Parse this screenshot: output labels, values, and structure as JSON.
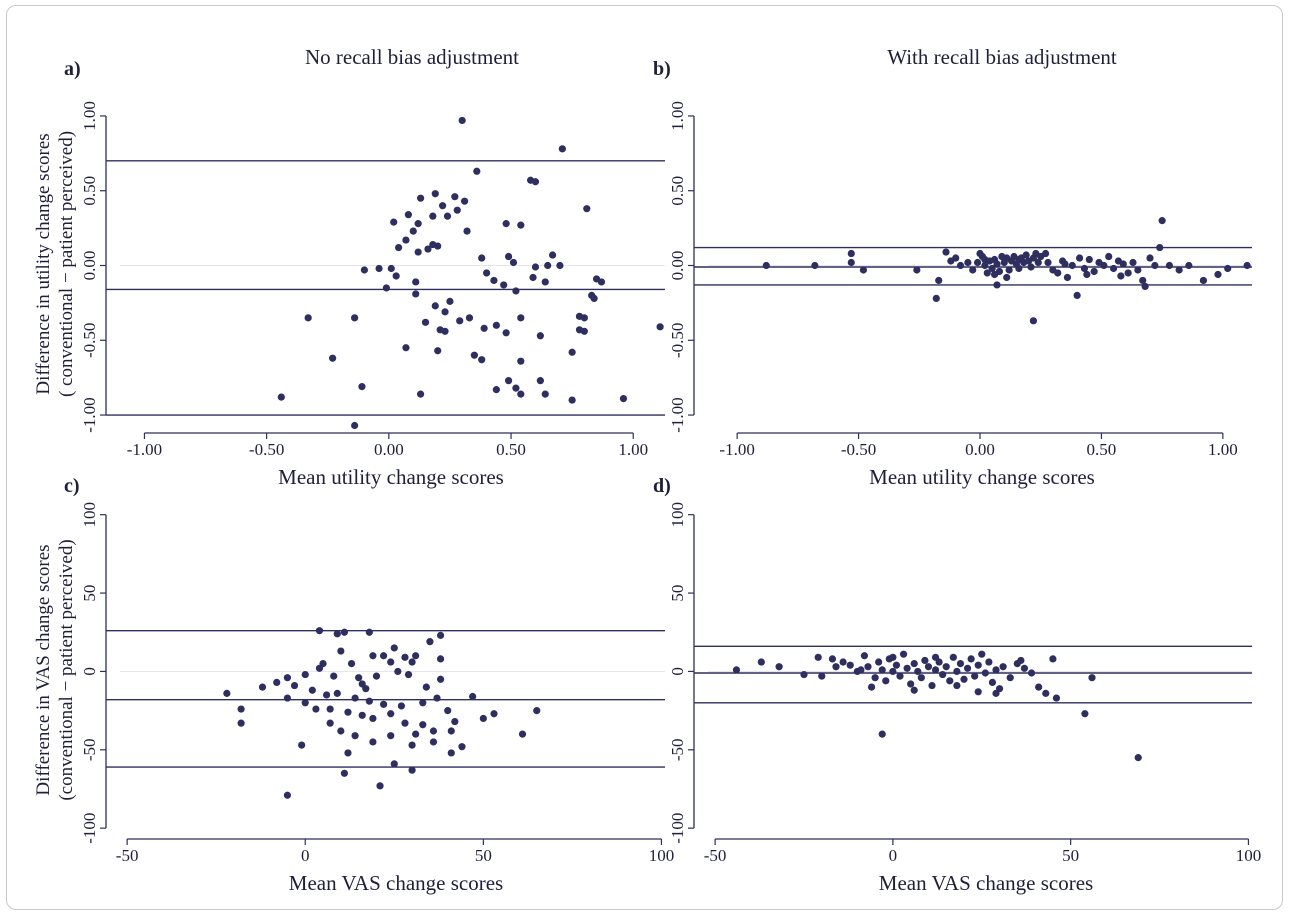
{
  "figure": {
    "ylabel_line1": "Difference in utility change scores",
    "ylabel_line2": "( conventional − patient perceived)",
    "ylabel_vas_line1": "Difference in VAS change  scores",
    "ylabel_vas_line2": "(conventional − patient perceived)"
  },
  "colors": {
    "points": "#2e2f5e",
    "lines": "#2e2f5e",
    "axis": "#2e2f5e"
  },
  "chart_data": [
    {
      "id": "a",
      "panel_label": "a)",
      "type": "scatter",
      "title": "No recall bias adjustment",
      "xlabel": "Mean utility change scores",
      "xlim": [
        -1.1,
        1.13
      ],
      "ylim": [
        -1.1,
        1.1
      ],
      "xticks": [
        "-1.00",
        "-0.50",
        "0.00",
        "0.50",
        "1.00"
      ],
      "xtick_values": [
        -1,
        -0.5,
        0,
        0.5,
        1
      ],
      "yticks": [
        "-1.00",
        "-0.50",
        "0.00",
        "0.50",
        "1.00"
      ],
      "ytick_values": [
        -1,
        -0.5,
        0,
        0.5,
        1
      ],
      "hlines": [
        0.7,
        -0.16,
        -1.0
      ],
      "grid_y": [
        0
      ],
      "points": [
        [
          0.3,
          0.97
        ],
        [
          0.71,
          0.78
        ],
        [
          0.36,
          0.63
        ],
        [
          0.58,
          0.57
        ],
        [
          0.6,
          0.56
        ],
        [
          0.81,
          0.38
        ],
        [
          0.19,
          0.48
        ],
        [
          0.13,
          0.45
        ],
        [
          0.27,
          0.46
        ],
        [
          0.31,
          0.43
        ],
        [
          0.22,
          0.4
        ],
        [
          0.28,
          0.37
        ],
        [
          0.08,
          0.34
        ],
        [
          0.18,
          0.33
        ],
        [
          0.24,
          0.33
        ],
        [
          0.02,
          0.29
        ],
        [
          0.12,
          0.28
        ],
        [
          0.48,
          0.28
        ],
        [
          0.54,
          0.27
        ],
        [
          0.1,
          0.23
        ],
        [
          0.07,
          0.17
        ],
        [
          0.18,
          0.14
        ],
        [
          0.2,
          0.13
        ],
        [
          0.16,
          0.11
        ],
        [
          0.04,
          0.12
        ],
        [
          0.12,
          0.09
        ],
        [
          0.32,
          0.23
        ],
        [
          0.38,
          0.05
        ],
        [
          0.49,
          0.06
        ],
        [
          0.67,
          0.07
        ],
        [
          0.51,
          0.02
        ],
        [
          0.01,
          -0.02
        ],
        [
          0.6,
          -0.01
        ],
        [
          0.65,
          0.0
        ],
        [
          0.7,
          0.0
        ],
        [
          0.03,
          -0.07
        ],
        [
          0.11,
          -0.11
        ],
        [
          -0.1,
          -0.03
        ],
        [
          -0.04,
          -0.02
        ],
        [
          0.4,
          -0.05
        ],
        [
          0.43,
          -0.1
        ],
        [
          0.47,
          -0.13
        ],
        [
          0.52,
          -0.17
        ],
        [
          0.59,
          -0.08
        ],
        [
          0.64,
          -0.11
        ],
        [
          0.85,
          -0.09
        ],
        [
          0.87,
          -0.11
        ],
        [
          0.83,
          -0.2
        ],
        [
          0.84,
          -0.22
        ],
        [
          -0.01,
          -0.15
        ],
        [
          0.11,
          -0.19
        ],
        [
          0.19,
          -0.27
        ],
        [
          0.25,
          -0.24
        ],
        [
          0.23,
          -0.31
        ],
        [
          0.29,
          -0.37
        ],
        [
          0.33,
          -0.35
        ],
        [
          0.39,
          -0.42
        ],
        [
          0.44,
          -0.4
        ],
        [
          0.48,
          -0.45
        ],
        [
          0.54,
          -0.35
        ],
        [
          0.62,
          -0.47
        ],
        [
          0.78,
          -0.34
        ],
        [
          0.8,
          -0.35
        ],
        [
          0.78,
          -0.43
        ],
        [
          0.8,
          -0.44
        ],
        [
          0.75,
          -0.58
        ],
        [
          -0.33,
          -0.35
        ],
        [
          -0.14,
          -0.35
        ],
        [
          -0.23,
          -0.62
        ],
        [
          0.07,
          -0.55
        ],
        [
          0.2,
          -0.57
        ],
        [
          0.23,
          -0.44
        ],
        [
          0.15,
          -0.38
        ],
        [
          0.35,
          -0.6
        ],
        [
          0.38,
          -0.63
        ],
        [
          0.54,
          -0.64
        ],
        [
          0.13,
          -0.86
        ],
        [
          -0.11,
          -0.81
        ],
        [
          -0.44,
          -0.88
        ],
        [
          0.44,
          -0.83
        ],
        [
          0.49,
          -0.77
        ],
        [
          0.52,
          -0.82
        ],
        [
          0.54,
          -0.86
        ],
        [
          0.62,
          -0.77
        ],
        [
          0.64,
          -0.86
        ],
        [
          0.75,
          -0.9
        ],
        [
          0.96,
          -0.89
        ],
        [
          1.11,
          -0.41
        ],
        [
          -0.14,
          -1.07
        ],
        [
          0.21,
          -0.43
        ]
      ]
    },
    {
      "id": "b",
      "panel_label": "b)",
      "type": "scatter",
      "title": "With recall bias adjustment",
      "xlabel": "Mean utility change scores",
      "xlim": [
        -1.12,
        1.12
      ],
      "ylim": [
        -1.1,
        1.1
      ],
      "xticks": [
        "-1.00",
        "-0.50",
        "0.00",
        "0.50",
        "1.00"
      ],
      "xtick_values": [
        -1,
        -0.5,
        0,
        0.5,
        1
      ],
      "yticks": [
        "-1.00",
        "-0.50",
        "0.00",
        "0.50",
        "1.00"
      ],
      "ytick_values": [
        -1,
        -0.5,
        0,
        0.5,
        1
      ],
      "hlines": [
        0.12,
        -0.01,
        -0.13
      ],
      "grid_y": [
        0
      ],
      "points": [
        [
          -0.88,
          0.0
        ],
        [
          -0.68,
          0.0
        ],
        [
          -0.53,
          0.08
        ],
        [
          -0.53,
          0.02
        ],
        [
          -0.48,
          -0.03
        ],
        [
          -0.26,
          -0.03
        ],
        [
          -0.17,
          -0.1
        ],
        [
          -0.18,
          -0.22
        ],
        [
          -0.14,
          0.09
        ],
        [
          -0.1,
          0.05
        ],
        [
          -0.08,
          0.0
        ],
        [
          -0.05,
          0.02
        ],
        [
          -0.03,
          -0.03
        ],
        [
          -0.01,
          0.02
        ],
        [
          0.0,
          0.08
        ],
        [
          0.01,
          0.06
        ],
        [
          0.02,
          0.0
        ],
        [
          0.03,
          -0.05
        ],
        [
          0.04,
          0.03
        ],
        [
          0.05,
          -0.02
        ],
        [
          0.06,
          0.04
        ],
        [
          0.07,
          0.01
        ],
        [
          0.08,
          -0.04
        ],
        [
          0.09,
          0.06
        ],
        [
          0.1,
          0.02
        ],
        [
          0.11,
          0.05
        ],
        [
          0.12,
          -0.03
        ],
        [
          0.13,
          0.03
        ],
        [
          0.14,
          0.06
        ],
        [
          0.15,
          0.01
        ],
        [
          0.16,
          -0.02
        ],
        [
          0.17,
          0.05
        ],
        [
          0.18,
          0.02
        ],
        [
          0.19,
          0.07
        ],
        [
          0.2,
          0.03
        ],
        [
          0.21,
          -0.01
        ],
        [
          0.22,
          0.05
        ],
        [
          0.23,
          0.08
        ],
        [
          0.24,
          0.02
        ],
        [
          0.25,
          0.06
        ],
        [
          0.22,
          -0.37
        ],
        [
          0.07,
          -0.13
        ],
        [
          0.11,
          -0.08
        ],
        [
          0.3,
          -0.03
        ],
        [
          0.32,
          -0.05
        ],
        [
          0.34,
          0.03
        ],
        [
          0.36,
          -0.08
        ],
        [
          0.38,
          0.0
        ],
        [
          0.4,
          -0.2
        ],
        [
          0.41,
          0.05
        ],
        [
          0.43,
          -0.02
        ],
        [
          0.45,
          0.04
        ],
        [
          0.47,
          -0.04
        ],
        [
          0.49,
          0.02
        ],
        [
          0.51,
          0.0
        ],
        [
          0.53,
          0.06
        ],
        [
          0.55,
          -0.02
        ],
        [
          0.57,
          0.03
        ],
        [
          0.59,
          0.01
        ],
        [
          0.61,
          -0.05
        ],
        [
          0.63,
          0.02
        ],
        [
          0.65,
          -0.03
        ],
        [
          0.67,
          -0.1
        ],
        [
          0.68,
          -0.14
        ],
        [
          0.7,
          0.05
        ],
        [
          0.72,
          0.0
        ],
        [
          0.74,
          0.12
        ],
        [
          0.75,
          0.3
        ],
        [
          0.78,
          0.0
        ],
        [
          0.82,
          -0.03
        ],
        [
          0.86,
          0.0
        ],
        [
          0.92,
          -0.1
        ],
        [
          0.98,
          -0.06
        ],
        [
          1.02,
          -0.02
        ],
        [
          1.1,
          0.0
        ],
        [
          0.28,
          0.02
        ],
        [
          0.35,
          0.01
        ],
        [
          0.44,
          -0.06
        ],
        [
          0.58,
          -0.07
        ],
        [
          0.06,
          -0.06
        ],
        [
          -0.12,
          0.03
        ],
        [
          0.02,
          0.04
        ],
        [
          0.27,
          0.08
        ],
        [
          0.16,
          0.04
        ]
      ]
    },
    {
      "id": "c",
      "panel_label": "c)",
      "type": "scatter",
      "title": "",
      "xlabel": "Mean VAS change scores",
      "xlim": [
        -52,
        101
      ],
      "ylim": [
        -105,
        103
      ],
      "xticks": [
        "-50",
        "0",
        "50",
        "100"
      ],
      "xtick_values": [
        -50,
        0,
        50,
        100
      ],
      "yticks": [
        "-100",
        "-50",
        "0",
        "50",
        "100"
      ],
      "ytick_values": [
        -100,
        -50,
        0,
        50,
        100
      ],
      "hlines": [
        26,
        -18,
        -61
      ],
      "grid_y": [
        0
      ],
      "points": [
        [
          4,
          26
        ],
        [
          11,
          25
        ],
        [
          18,
          25
        ],
        [
          38,
          23
        ],
        [
          9,
          24
        ],
        [
          35,
          19
        ],
        [
          25,
          15
        ],
        [
          10,
          13
        ],
        [
          22,
          10
        ],
        [
          31,
          10
        ],
        [
          19,
          10
        ],
        [
          28,
          9
        ],
        [
          38,
          8
        ],
        [
          5,
          5
        ],
        [
          13,
          5
        ],
        [
          24,
          6
        ],
        [
          30,
          6
        ],
        [
          -5,
          -4
        ],
        [
          0,
          -2
        ],
        [
          4,
          2
        ],
        [
          8,
          -3
        ],
        [
          15,
          -4
        ],
        [
          20,
          -3
        ],
        [
          26,
          0
        ],
        [
          -12,
          -10
        ],
        [
          -8,
          -7
        ],
        [
          -3,
          -9
        ],
        [
          2,
          -12
        ],
        [
          6,
          -15
        ],
        [
          9,
          -14
        ],
        [
          14,
          -17
        ],
        [
          18,
          -19
        ],
        [
          22,
          -21
        ],
        [
          27,
          -22
        ],
        [
          33,
          -20
        ],
        [
          37,
          -17
        ],
        [
          -5,
          -17
        ],
        [
          0,
          -20
        ],
        [
          3,
          -24
        ],
        [
          7,
          -24
        ],
        [
          12,
          -26
        ],
        [
          16,
          -28
        ],
        [
          19,
          -30
        ],
        [
          24,
          -27
        ],
        [
          28,
          -33
        ],
        [
          33,
          -34
        ],
        [
          36,
          -38
        ],
        [
          41,
          -38
        ],
        [
          47,
          -16
        ],
        [
          53,
          -27
        ],
        [
          50,
          -30
        ],
        [
          -22,
          -14
        ],
        [
          -18,
          -24
        ],
        [
          -18,
          -33
        ],
        [
          7,
          -33
        ],
        [
          10,
          -38
        ],
        [
          14,
          -41
        ],
        [
          19,
          -45
        ],
        [
          24,
          -41
        ],
        [
          30,
          -47
        ],
        [
          36,
          -45
        ],
        [
          41,
          -52
        ],
        [
          44,
          -48
        ],
        [
          -1,
          -47
        ],
        [
          12,
          -52
        ],
        [
          25,
          -59
        ],
        [
          30,
          -63
        ],
        [
          11,
          -65
        ],
        [
          21,
          -73
        ],
        [
          -5,
          -79
        ],
        [
          61,
          -40
        ],
        [
          65,
          -25
        ],
        [
          34,
          -10
        ],
        [
          38,
          -5
        ],
        [
          40,
          -25
        ],
        [
          16,
          -8
        ],
        [
          29,
          -2
        ],
        [
          42,
          -32
        ],
        [
          17,
          -11
        ],
        [
          31,
          -40
        ]
      ]
    },
    {
      "id": "d",
      "panel_label": "d)",
      "type": "scatter",
      "title": "",
      "xlabel": "Mean VAS change scores",
      "xlim": [
        -52,
        101
      ],
      "ylim": [
        -105,
        103
      ],
      "xticks": [
        "-50",
        "0",
        "50",
        "100"
      ],
      "xtick_values": [
        -50,
        0,
        50,
        100
      ],
      "yticks": [
        "-100",
        "-50",
        "0",
        "50",
        "100"
      ],
      "ytick_values": [
        -100,
        -50,
        0,
        50,
        100
      ],
      "hlines": [
        16,
        -1,
        -20
      ],
      "grid_y": [
        0
      ],
      "points": [
        [
          -44,
          1
        ],
        [
          -37,
          6
        ],
        [
          -32,
          3
        ],
        [
          -25,
          -2
        ],
        [
          -21,
          9
        ],
        [
          -17,
          8
        ],
        [
          -14,
          6
        ],
        [
          -12,
          4
        ],
        [
          -10,
          0
        ],
        [
          -8,
          10
        ],
        [
          -7,
          3
        ],
        [
          -5,
          -4
        ],
        [
          -4,
          6
        ],
        [
          -3,
          1
        ],
        [
          -2,
          -6
        ],
        [
          -1,
          8
        ],
        [
          0,
          0
        ],
        [
          1,
          4
        ],
        [
          2,
          -3
        ],
        [
          3,
          11
        ],
        [
          4,
          2
        ],
        [
          5,
          -8
        ],
        [
          6,
          5
        ],
        [
          7,
          0
        ],
        [
          8,
          -4
        ],
        [
          9,
          7
        ],
        [
          10,
          3
        ],
        [
          11,
          -9
        ],
        [
          12,
          1
        ],
        [
          13,
          6
        ],
        [
          14,
          -2
        ],
        [
          15,
          3
        ],
        [
          16,
          -6
        ],
        [
          17,
          9
        ],
        [
          18,
          0
        ],
        [
          19,
          5
        ],
        [
          20,
          -5
        ],
        [
          21,
          2
        ],
        [
          22,
          8
        ],
        [
          23,
          -3
        ],
        [
          24,
          4
        ],
        [
          25,
          11
        ],
        [
          26,
          -1
        ],
        [
          27,
          6
        ],
        [
          28,
          -7
        ],
        [
          29,
          1
        ],
        [
          30,
          -11
        ],
        [
          31,
          3
        ],
        [
          33,
          -4
        ],
        [
          35,
          5
        ],
        [
          37,
          2
        ],
        [
          39,
          -1
        ],
        [
          41,
          -10
        ],
        [
          43,
          -14
        ],
        [
          45,
          8
        ],
        [
          46,
          -17
        ],
        [
          54,
          -27
        ],
        [
          56,
          -4
        ],
        [
          69,
          -55
        ],
        [
          -3,
          -40
        ],
        [
          -20,
          -3
        ],
        [
          -6,
          -10
        ],
        [
          -9,
          1
        ],
        [
          6,
          -12
        ],
        [
          18,
          -9
        ],
        [
          24,
          -13
        ],
        [
          29,
          -14
        ],
        [
          36,
          7
        ],
        [
          -16,
          3
        ],
        [
          0,
          9
        ],
        [
          12,
          9
        ]
      ]
    }
  ]
}
